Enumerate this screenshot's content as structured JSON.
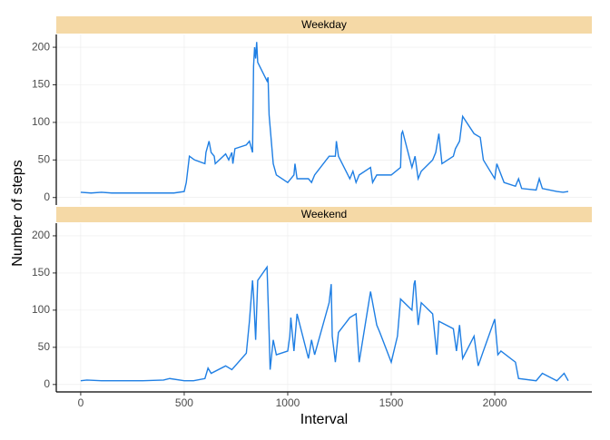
{
  "chart_data": [
    {
      "type": "line",
      "title": "Weekday",
      "ylabel": "Number of steps",
      "color": "#1f7fe4",
      "grid": true,
      "xlim": [
        -118,
        2469
      ],
      "ylim": [
        -10,
        217
      ],
      "yticks": [
        0,
        50,
        100,
        150,
        200
      ],
      "x": [
        0,
        50,
        100,
        150,
        200,
        250,
        300,
        350,
        400,
        450,
        500,
        510,
        525,
        550,
        600,
        605,
        615,
        620,
        630,
        645,
        650,
        700,
        715,
        730,
        735,
        745,
        800,
        815,
        830,
        835,
        840,
        845,
        850,
        855,
        900,
        905,
        910,
        930,
        945,
        1000,
        1030,
        1035,
        1045,
        1100,
        1115,
        1130,
        1200,
        1230,
        1235,
        1245,
        1300,
        1315,
        1330,
        1345,
        1400,
        1410,
        1430,
        1500,
        1545,
        1550,
        1555,
        1600,
        1615,
        1630,
        1645,
        1700,
        1715,
        1730,
        1745,
        1800,
        1810,
        1830,
        1845,
        1900,
        1930,
        1945,
        2000,
        2010,
        2045,
        2100,
        2115,
        2130,
        2200,
        2215,
        2230,
        2300,
        2330,
        2355
      ],
      "values": [
        7,
        6,
        7,
        6,
        6,
        6,
        6,
        6,
        6,
        6,
        8,
        20,
        55,
        50,
        45,
        60,
        70,
        75,
        60,
        55,
        45,
        58,
        50,
        60,
        45,
        65,
        70,
        75,
        60,
        175,
        200,
        185,
        207,
        180,
        155,
        160,
        110,
        45,
        30,
        20,
        30,
        45,
        25,
        25,
        20,
        30,
        55,
        55,
        75,
        55,
        25,
        35,
        20,
        30,
        40,
        20,
        30,
        30,
        40,
        85,
        88,
        40,
        55,
        25,
        35,
        50,
        60,
        85,
        45,
        55,
        65,
        75,
        108,
        85,
        80,
        50,
        25,
        45,
        20,
        15,
        25,
        12,
        10,
        25,
        12,
        8,
        7,
        8
      ]
    },
    {
      "type": "line",
      "title": "Weekend",
      "xlabel": "Interval",
      "color": "#1f7fe4",
      "grid": true,
      "xlim": [
        -118,
        2469
      ],
      "ylim": [
        -10,
        217
      ],
      "xticks": [
        0,
        500,
        1000,
        1500,
        2000
      ],
      "yticks": [
        0,
        50,
        100,
        150,
        200
      ],
      "x": [
        0,
        30,
        100,
        200,
        300,
        400,
        430,
        500,
        545,
        600,
        615,
        630,
        700,
        730,
        800,
        815,
        830,
        835,
        845,
        855,
        900,
        910,
        915,
        930,
        945,
        1000,
        1010,
        1015,
        1030,
        1045,
        1100,
        1115,
        1130,
        1200,
        1210,
        1215,
        1230,
        1245,
        1300,
        1330,
        1345,
        1400,
        1430,
        1445,
        1500,
        1530,
        1545,
        1600,
        1610,
        1615,
        1630,
        1645,
        1700,
        1720,
        1730,
        1800,
        1815,
        1830,
        1845,
        1900,
        1920,
        1945,
        2000,
        2015,
        2030,
        2100,
        2115,
        2200,
        2230,
        2300,
        2335,
        2355
      ],
      "values": [
        5,
        6,
        5,
        5,
        5,
        6,
        8,
        5,
        5,
        8,
        22,
        15,
        25,
        20,
        42,
        85,
        140,
        120,
        60,
        140,
        158,
        70,
        20,
        60,
        40,
        45,
        65,
        90,
        45,
        95,
        35,
        60,
        40,
        110,
        135,
        65,
        30,
        70,
        90,
        95,
        30,
        125,
        80,
        70,
        30,
        65,
        115,
        100,
        135,
        140,
        80,
        110,
        95,
        40,
        85,
        75,
        45,
        80,
        35,
        65,
        25,
        45,
        88,
        40,
        45,
        30,
        8,
        5,
        15,
        5,
        15,
        5
      ]
    }
  ]
}
